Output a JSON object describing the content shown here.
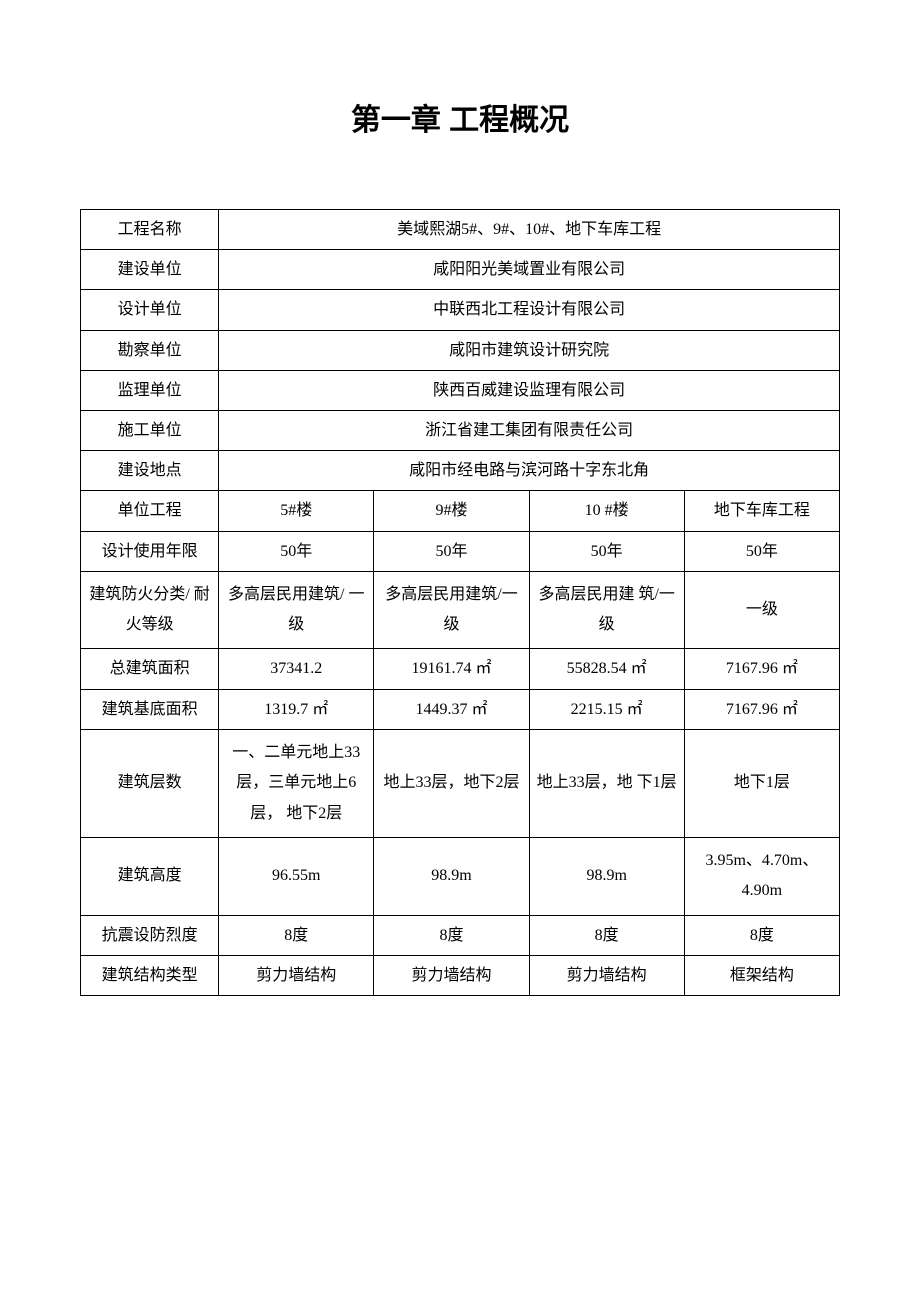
{
  "title": "第一章 工程概况",
  "table": {
    "rows": [
      {
        "label": "工程名称",
        "value": "美域熙湖5#、9#、10#、地下车库工程"
      },
      {
        "label": "建设单位",
        "value": "咸阳阳光美域置业有限公司"
      },
      {
        "label": "设计单位",
        "value": "中联西北工程设计有限公司"
      },
      {
        "label": "勘察单位",
        "value": "咸阳市建筑设计研究院"
      },
      {
        "label": "监理单位",
        "value": "陕西百威建设监理有限公司"
      },
      {
        "label": "施工单位",
        "value": "浙江省建工集团有限责任公司"
      },
      {
        "label": "建设地点",
        "value": "咸阳市经电路与滨河路十字东北角"
      }
    ],
    "header_row": {
      "label": "单位工程",
      "col1": "5#楼",
      "col2": "9#楼",
      "col3": "10 #楼",
      "col4": "地下车库工程"
    },
    "data_rows": [
      {
        "label": "设计使用年限",
        "col1": "50年",
        "col2": "50年",
        "col3": "50年",
        "col4": "50年"
      },
      {
        "label": "建筑防火分类/ 耐火等级",
        "col1": "多高层民用建筑/ 一级",
        "col2": "多高层民用建筑/一级",
        "col3": "多高层民用建 筑/一级",
        "col4": "一级"
      },
      {
        "label": "总建筑面积",
        "col1": "37341.2",
        "col2": "19161.74 ㎡",
        "col3": "55828.54 ㎡",
        "col4": "7167.96 ㎡"
      },
      {
        "label": "建筑基底面积",
        "col1": "1319.7 ㎡",
        "col2": "1449.37 ㎡",
        "col3": "2215.15 ㎡",
        "col4": "7167.96 ㎡"
      },
      {
        "label": "建筑层数",
        "col1": "一、二单元地上33层，三单元地上6层， 地下2层",
        "col2": "地上33层，地下2层",
        "col3": "地上33层，地 下1层",
        "col4": "地下1层"
      },
      {
        "label": "建筑高度",
        "col1": "96.55m",
        "col2": "98.9m",
        "col3": "98.9m",
        "col4": "3.95m、4.70m、4.90m"
      },
      {
        "label": "抗震设防烈度",
        "col1": "8度",
        "col2": "8度",
        "col3": "8度",
        "col4": "8度"
      },
      {
        "label": "建筑结构类型",
        "col1": "剪力墙结构",
        "col2": "剪力墙结构",
        "col3": "剪力墙结构",
        "col4": "框架结构"
      }
    ]
  },
  "style": {
    "background_color": "#ffffff",
    "border_color": "#000000",
    "title_fontsize": 30,
    "body_fontsize": 16,
    "label_col_width": 138,
    "data_col_width": 155
  }
}
